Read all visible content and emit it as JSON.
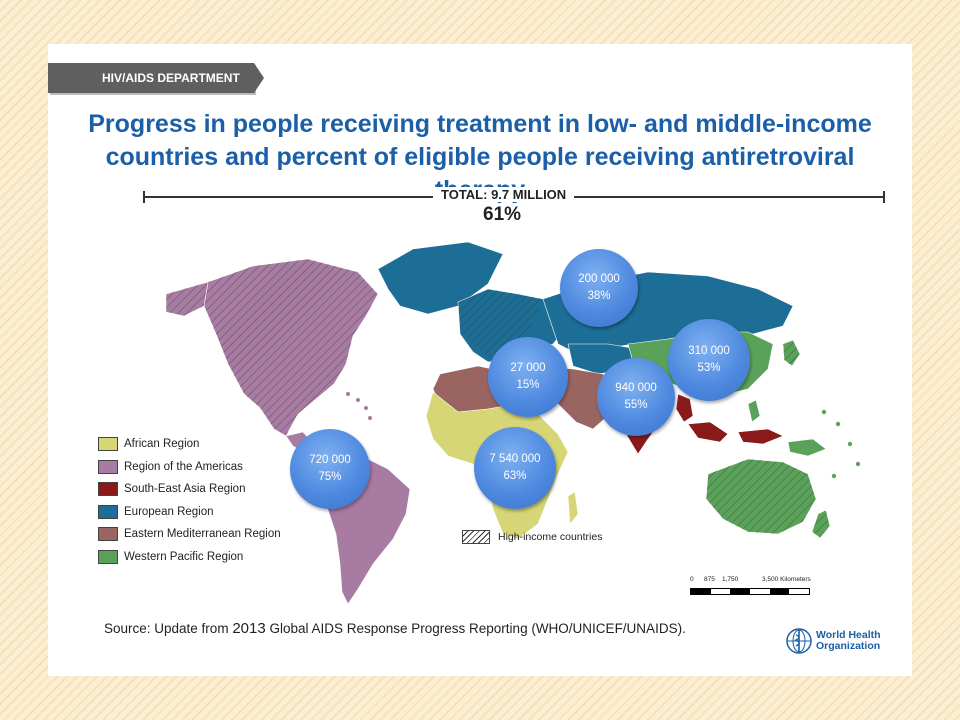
{
  "header": {
    "department": "HIV/AIDS DEPARTMENT",
    "title_line1": "Progress in people receiving treatment in low- and middle-income",
    "title_line2": "countries and percent of eligible people receiving antiretroviral therapy",
    "total": "TOTAL: 9.7 MILLION",
    "total_pct": "61%"
  },
  "regions": [
    {
      "name": "African Region",
      "color": "#d6d676",
      "people": "7 540 000",
      "pct": "63%"
    },
    {
      "name": "Region of the Americas",
      "color": "#a77ba2",
      "people": "720 000",
      "pct": "75%"
    },
    {
      "name": "South-East Asia Region",
      "color": "#8a1a1a",
      "people": "940  000",
      "pct": "55%"
    },
    {
      "name": "European Region",
      "color": "#1d6e96",
      "people": "200 000",
      "pct": "38%"
    },
    {
      "name": "Eastern Mediterranean Region",
      "color": "#9a6460",
      "people": "27 000",
      "pct": "15%"
    },
    {
      "name": "Western Pacific Region",
      "color": "#5aa25a",
      "people": "310  000",
      "pct": "53%"
    }
  ],
  "high_income_label": "High-income countries",
  "scale": {
    "labels": [
      "0",
      "875",
      "1,750",
      "3,500 Kilometers"
    ]
  },
  "source": {
    "prefix": "Source: Update from ",
    "year": "2013",
    "suffix": " Global AIDS Response Progress Reporting (WHO/UNICEF/UNAIDS)."
  },
  "who": {
    "line1": "World Health",
    "line2": "Organization"
  },
  "icons": [
    "who-emblem-icon"
  ]
}
